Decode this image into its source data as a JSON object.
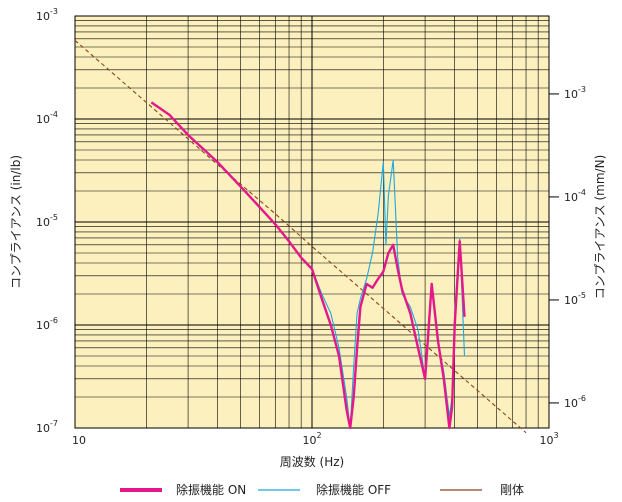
{
  "chart_data": {
    "type": "line",
    "xscale": "log",
    "yscale": "log",
    "xlim": [
      10,
      1000
    ],
    "ylim_left": [
      1e-07,
      0.001
    ],
    "ylim_right_mm_per_N": [
      5.71e-07,
      0.00571
    ],
    "grid": true,
    "background_color": "#FBF0BE",
    "xlabel": "周波数 (Hz)",
    "ylabel_left": "コンプライアンス (in/lb)",
    "ylabel_right": "コンプライアンス (mm/N)",
    "x_ticks": [
      {
        "base": "10",
        "exp": ""
      },
      {
        "base": "10",
        "exp": "2"
      },
      {
        "base": "10",
        "exp": "3"
      }
    ],
    "y_ticks_left": [
      {
        "base": "10",
        "exp": "-3"
      },
      {
        "base": "10",
        "exp": "-4"
      },
      {
        "base": "10",
        "exp": "-5"
      },
      {
        "base": "10",
        "exp": "-6"
      },
      {
        "base": "10",
        "exp": "-7"
      }
    ],
    "y_ticks_right": [
      {
        "base": "10",
        "exp": "-3"
      },
      {
        "base": "10",
        "exp": "-4"
      },
      {
        "base": "10",
        "exp": "-5"
      },
      {
        "base": "10",
        "exp": "-6"
      }
    ],
    "legend_position": "bottom",
    "series": [
      {
        "name": "剛体",
        "color": "#8B4513",
        "style": "dashed",
        "x": [
          10,
          20,
          40,
          70,
          100,
          200,
          400,
          800
        ],
        "y": [
          0.00058,
          0.000145,
          3.6e-05,
          1.2e-05,
          5.8e-06,
          1.45e-06,
          3.6e-07,
          9e-08
        ]
      },
      {
        "name": "除振機能 OFF",
        "color": "#1EA8DC",
        "style": "thin",
        "x": [
          21,
          25,
          30,
          40,
          50,
          60,
          70,
          80,
          90,
          100,
          110,
          120,
          130,
          140,
          145,
          150,
          155,
          160,
          170,
          180,
          190,
          200,
          205,
          210,
          220,
          230,
          240,
          260,
          280,
          300,
          320,
          340,
          360,
          380,
          390,
          400,
          420,
          440
        ],
        "y": [
          0.000145,
          0.00011,
          7e-05,
          3.8e-05,
          2.2e-05,
          1.4e-05,
          9.5e-06,
          6.5e-06,
          4.5e-06,
          3.5e-06,
          2e-06,
          1.3e-06,
          6e-07,
          2e-07,
          1e-07,
          4e-07,
          1.3e-06,
          1.8e-06,
          2.8e-06,
          5e-06,
          1.2e-05,
          3.8e-05,
          6e-06,
          1.8e-05,
          4e-05,
          4.5e-06,
          2e-06,
          1.5e-06,
          9e-07,
          3e-07,
          2.5e-06,
          7e-07,
          3.5e-07,
          1.3e-07,
          2e-07,
          1.3e-06,
          7e-06,
          5e-07
        ]
      },
      {
        "name": "除振機能 ON",
        "color": "#E2188B",
        "style": "thick",
        "x": [
          21,
          25,
          30,
          40,
          50,
          60,
          70,
          80,
          90,
          100,
          110,
          120,
          130,
          140,
          145,
          150,
          155,
          160,
          170,
          180,
          190,
          200,
          210,
          220,
          230,
          240,
          260,
          280,
          300,
          320,
          340,
          360,
          380,
          390,
          400,
          420,
          440
        ],
        "y": [
          0.000145,
          0.00011,
          7e-05,
          3.8e-05,
          2.2e-05,
          1.4e-05,
          9.5e-06,
          6.5e-06,
          4.5e-06,
          3.5e-06,
          1.8e-06,
          1e-06,
          5e-07,
          1.5e-07,
          1e-07,
          2e-07,
          6e-07,
          1.5e-06,
          2.5e-06,
          2.3e-06,
          2.8e-06,
          3.3e-06,
          5e-06,
          6e-06,
          3.5e-06,
          2.2e-06,
          1.3e-06,
          6e-07,
          3e-07,
          2.5e-06,
          7e-07,
          3e-07,
          1e-07,
          1.6e-07,
          1e-06,
          6.5e-06,
          1.2e-06
        ]
      }
    ]
  }
}
